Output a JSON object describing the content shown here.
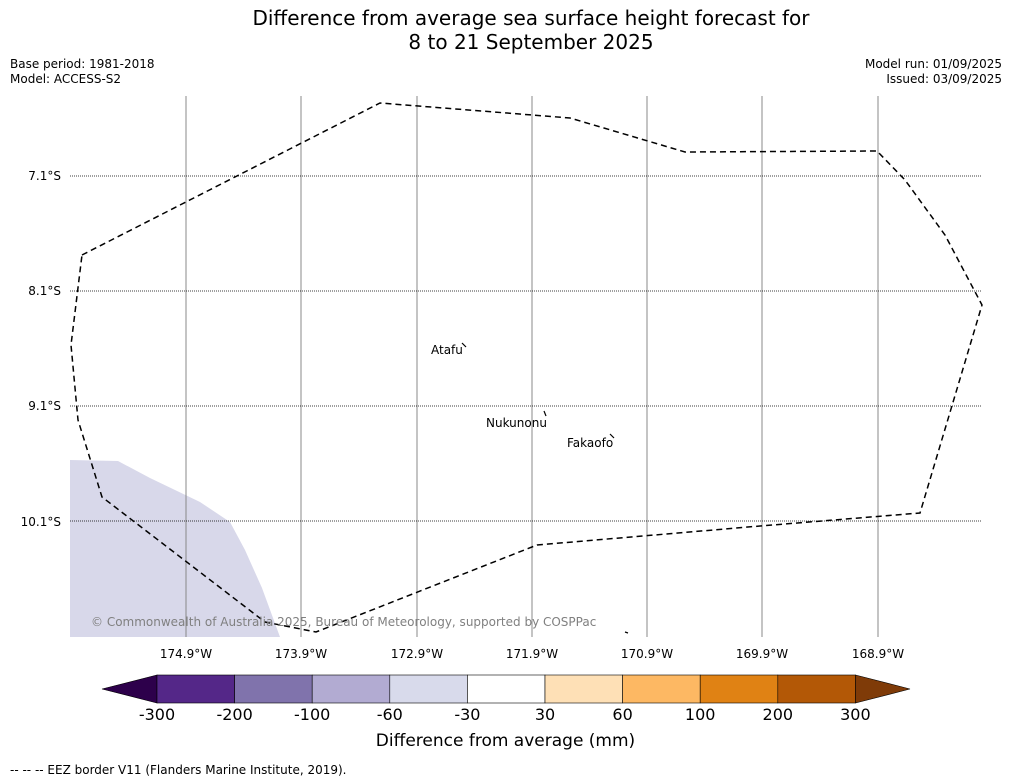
{
  "title_line1": "Difference from average sea surface height forecast for",
  "title_line2": "8 to 21 September 2025",
  "meta": {
    "base_period": "Base period: 1981-2018",
    "model": "Model: ACCESS-S2",
    "model_run": "Model run: 01/09/2025",
    "issued": "Issued: 03/09/2025"
  },
  "map": {
    "lat_labels": [
      "7.1°S",
      "8.1°S",
      "9.1°S",
      "10.1°S"
    ],
    "lon_labels": [
      "174.9°W",
      "173.9°W",
      "172.9°W",
      "171.9°W",
      "170.9°W",
      "169.9°W",
      "168.9°W"
    ],
    "places": [
      "Atafu",
      "Nukunonu",
      "Fakaofo"
    ],
    "copyright": "© Commonwealth of Australia 2025, Bureau of Meteorology, supported by COSPPac",
    "field_color": "#d8d8ea"
  },
  "colorbar": {
    "label": "Difference from average (mm)",
    "ticks": [
      "-300",
      "-200",
      "-100",
      "-60",
      "-30",
      "30",
      "60",
      "100",
      "200",
      "300"
    ],
    "colors": [
      "#2d004b",
      "#542788",
      "#8073ac",
      "#b2abd2",
      "#d8daeb",
      "#ffffff",
      "#fee0b6",
      "#fdb863",
      "#e08214",
      "#b35806",
      "#7f3b08"
    ]
  },
  "footnote": "--  --  -- EEZ border V11 (Flanders Marine Institute, 2019)."
}
